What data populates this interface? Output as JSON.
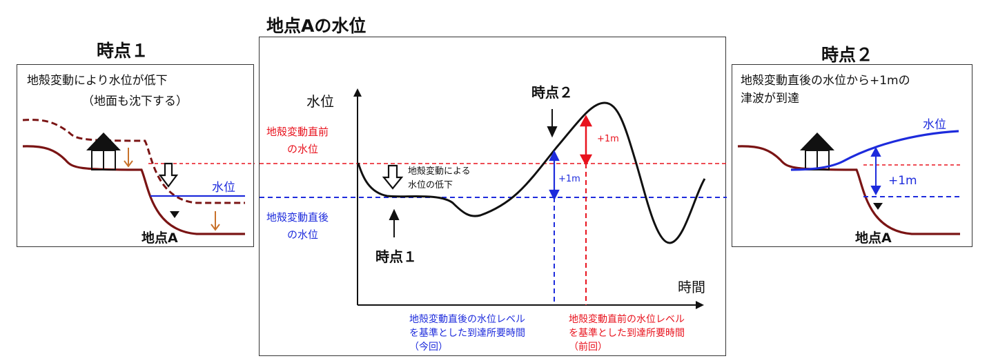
{
  "left_panel": {
    "heading": "時点１",
    "caption_line1": "地殻変動により水位が低下",
    "caption_line2": "（地面も沈下する）",
    "water_label": "水位",
    "point_label": "地点A"
  },
  "center_panel": {
    "title": "地点Aの水位",
    "y_axis_label": "水位",
    "x_axis_label": "時間",
    "before_label_line1": "地殻変動直前",
    "before_label_line2": "の水位",
    "after_label_line1": "地殻変動直後",
    "after_label_line2": "の水位",
    "drop_label_line1": "地殻変動による",
    "drop_label_line2": "水位の低下",
    "time1_label": "時点１",
    "time2_label": "時点２",
    "plus1m_blue": "+1m",
    "plus1m_red": "+1m",
    "blue_caption_line1": "地殻変動直後の水位レベル",
    "blue_caption_line2": "を基準とした到達所要時間",
    "blue_caption_line3": "（今回）",
    "red_caption_line1": "地殻変動直前の水位レベル",
    "red_caption_line2": "を基準とした到達所要時間",
    "red_caption_line3": "（前回）"
  },
  "right_panel": {
    "heading": "時点２",
    "caption_line1": "地殻変動直後の水位から+1mの",
    "caption_line2": "津波が到達",
    "water_label": "水位",
    "plus1m": "+1m",
    "point_label": "地点A"
  },
  "colors": {
    "red": "#e8121d",
    "blue": "#1d2bdc",
    "ground": "#7a1414",
    "orange_arrow": "#c8712a",
    "black": "#111111"
  }
}
